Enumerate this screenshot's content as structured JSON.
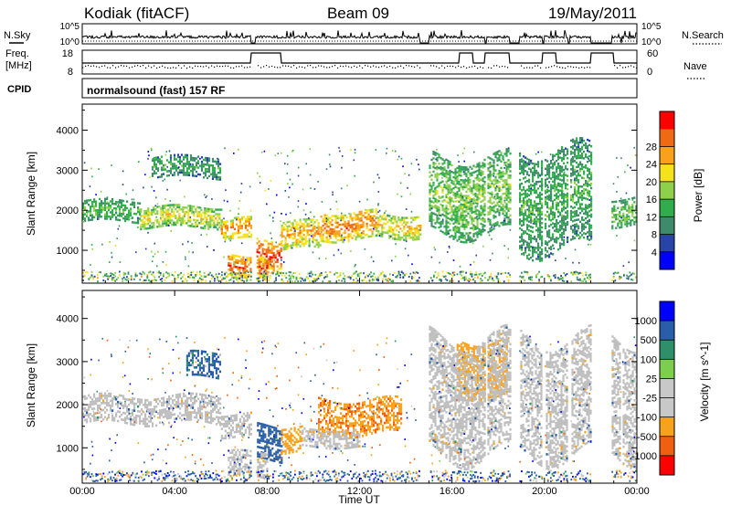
{
  "header": {
    "station": "Kodiak (fitACF)",
    "beam": "Beam 09",
    "date": "19/May/2011"
  },
  "left_labels": {
    "nsky": "N.Sky",
    "freq_line1": "Freq.",
    "freq_line2": "[MHz]",
    "cpid": "CPID"
  },
  "right_labels": {
    "nsearch": "N.Search",
    "nave": "Nave"
  },
  "strip_ticks": {
    "sky_top": "10^5",
    "sky_bottom": "10^0",
    "search_top": "10^5",
    "search_bottom": "10^0",
    "freq_top": "18",
    "freq_bottom": "8",
    "nave_top": "60",
    "nave_bottom": "0"
  },
  "cpid_text": "normalsound (fast) 157 RF",
  "colors": {
    "power_scale": [
      "#0000ff",
      "#2845a6",
      "#3f8a6a",
      "#31ad4c",
      "#8fd04a",
      "#f5e21b",
      "#f9a11a",
      "#f06a14",
      "#ff0000"
    ],
    "velocity_scale": [
      "#ff0000",
      "#f06010",
      "#f7a21c",
      "#c8c8c8",
      "#c8c8c8",
      "#7ccf4d",
      "#2e8f68",
      "#2a5ea8",
      "#0000ff"
    ],
    "ground_scatter": "#bebebe"
  },
  "chart_data": [
    {
      "type": "heatmap",
      "panel": "power",
      "ylabel": "Slant Range [km]",
      "yticks": [
        "1000",
        "2000",
        "3000",
        "4000"
      ],
      "ylim": [
        180,
        4650
      ],
      "xlim": [
        0,
        24
      ],
      "colorbar": {
        "label": "Power [dB]",
        "ticks": [
          "4",
          "8",
          "12",
          "16",
          "20",
          "24",
          "28"
        ],
        "range": [
          0,
          32
        ]
      },
      "bands": [
        {
          "t0": 0.0,
          "t1": 2.5,
          "r0": 1700,
          "r1": 2200,
          "value": 14
        },
        {
          "t0": 2.5,
          "t1": 6.0,
          "r0": 1550,
          "r1": 2050,
          "value": 20
        },
        {
          "t0": 6.0,
          "t1": 7.3,
          "r0": 1250,
          "r1": 1750,
          "value": 26
        },
        {
          "t0": 7.3,
          "t1": 8.6,
          "r0": 500,
          "r1": 1300,
          "value": 29
        },
        {
          "t0": 8.6,
          "t1": 10.3,
          "r0": 1000,
          "r1": 1700,
          "value": 24
        },
        {
          "t0": 10.3,
          "t1": 12.7,
          "r0": 1250,
          "r1": 1950,
          "value": 26
        },
        {
          "t0": 12.7,
          "t1": 14.7,
          "r0": 1300,
          "r1": 1900,
          "value": 22
        },
        {
          "t0": 3.0,
          "t1": 6.0,
          "r0": 2800,
          "r1": 3300,
          "value": 12
        },
        {
          "t0": 15.0,
          "t1": 18.5,
          "r0": 1400,
          "r1": 3300,
          "value": 16
        },
        {
          "t0": 18.9,
          "t1": 22.9,
          "r0": 1000,
          "r1": 3500,
          "value": 13
        },
        {
          "t0": 22.9,
          "t1": 24.0,
          "r0": 1600,
          "r1": 2300,
          "value": 15
        },
        {
          "t0": 6.3,
          "t1": 8.0,
          "r0": 300,
          "r1": 900,
          "value": 28
        }
      ]
    },
    {
      "type": "heatmap",
      "panel": "velocity",
      "ylabel": "Slant Range [km]",
      "yticks": [
        "1000",
        "2000",
        "3000",
        "4000"
      ],
      "ylim": [
        180,
        4650
      ],
      "xlim": [
        0,
        24
      ],
      "xlabel": "Time UT",
      "xticks": [
        "00:00",
        "04:00",
        "08:00",
        "12:00",
        "16:00",
        "20:00",
        "00:00"
      ],
      "colorbar": {
        "label": "Velocity [m s^-1]",
        "ticks": [
          "-1000",
          "-500",
          "-100",
          "-25",
          "25",
          "100",
          "500",
          "1000"
        ],
        "range": [
          -1250,
          1250
        ]
      },
      "bands": [
        {
          "t0": 0.0,
          "t1": 6.0,
          "r0": 1550,
          "r1": 2200,
          "value": 0
        },
        {
          "t0": 6.0,
          "t1": 7.3,
          "r0": 1250,
          "r1": 1750,
          "value": 0
        },
        {
          "t0": 7.4,
          "t1": 8.6,
          "r0": 700,
          "r1": 1500,
          "value": 300
        },
        {
          "t0": 8.6,
          "t1": 9.5,
          "r0": 900,
          "r1": 1500,
          "value": -300
        },
        {
          "t0": 10.2,
          "t1": 13.8,
          "r0": 1300,
          "r1": 2100,
          "value": -400
        },
        {
          "t0": 9.5,
          "t1": 12.0,
          "r0": 1000,
          "r1": 1400,
          "value": 0
        },
        {
          "t0": 4.5,
          "t1": 6.0,
          "r0": 2600,
          "r1": 3200,
          "value": 200
        },
        {
          "t0": 16.2,
          "t1": 18.4,
          "r0": 2200,
          "r1": 3500,
          "value": -300
        },
        {
          "t0": 15.0,
          "t1": 24.0,
          "r0": 800,
          "r1": 3500,
          "value": 0
        },
        {
          "t0": 6.3,
          "t1": 8.0,
          "r0": 300,
          "r1": 900,
          "value": 0
        }
      ]
    }
  ]
}
